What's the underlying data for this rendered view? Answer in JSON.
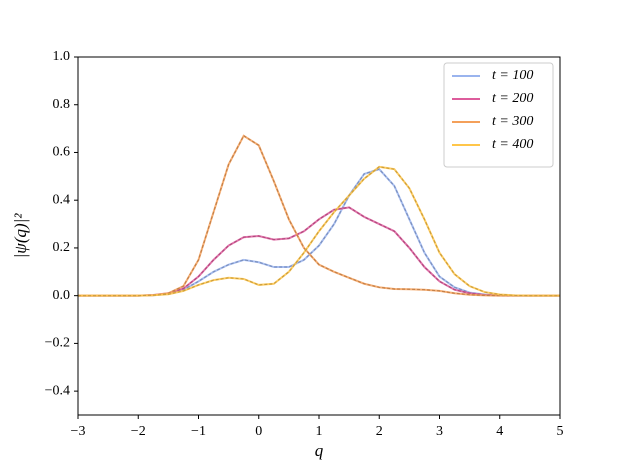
{
  "chart_data": {
    "type": "line",
    "xlabel": "q",
    "ylabel": "|ψ(q)|²",
    "x": [
      -3,
      -2.75,
      -2.5,
      -2.25,
      -2,
      -1.75,
      -1.5,
      -1.25,
      -1,
      -0.75,
      -0.5,
      -0.25,
      0,
      0.25,
      0.5,
      0.75,
      1,
      1.25,
      1.5,
      1.75,
      2,
      2.25,
      2.5,
      2.75,
      3,
      3.25,
      3.5,
      3.75,
      4,
      4.25,
      4.5,
      4.75,
      5
    ],
    "series": [
      {
        "name": "t = 100",
        "color": "#9ab4ee",
        "values": [
          0,
          0,
          0,
          0,
          0,
          0.002,
          0.008,
          0.025,
          0.06,
          0.1,
          0.13,
          0.15,
          0.14,
          0.12,
          0.12,
          0.15,
          0.21,
          0.3,
          0.42,
          0.51,
          0.53,
          0.46,
          0.32,
          0.18,
          0.08,
          0.035,
          0.013,
          0.005,
          0.002,
          0,
          0,
          0,
          0
        ]
      },
      {
        "name": "t = 200",
        "color": "#dd5c9c",
        "values": [
          0,
          0,
          0,
          0,
          0,
          0.003,
          0.01,
          0.03,
          0.08,
          0.15,
          0.21,
          0.245,
          0.25,
          0.235,
          0.24,
          0.27,
          0.32,
          0.36,
          0.37,
          0.33,
          0.3,
          0.27,
          0.2,
          0.12,
          0.06,
          0.025,
          0.01,
          0.003,
          0.001,
          0,
          0,
          0,
          0
        ]
      },
      {
        "name": "t = 300",
        "color": "#f4a05a",
        "values": [
          0,
          0,
          0,
          0,
          0,
          0.002,
          0.01,
          0.04,
          0.15,
          0.35,
          0.55,
          0.67,
          0.63,
          0.48,
          0.32,
          0.2,
          0.13,
          0.1,
          0.075,
          0.05,
          0.035,
          0.028,
          0.027,
          0.025,
          0.02,
          0.01,
          0.004,
          0.001,
          0,
          0,
          0,
          0,
          0
        ]
      },
      {
        "name": "t = 400",
        "color": "#ffc64a",
        "values": [
          0,
          0,
          0,
          0,
          0,
          0.002,
          0.006,
          0.02,
          0.045,
          0.065,
          0.075,
          0.07,
          0.045,
          0.05,
          0.1,
          0.18,
          0.27,
          0.35,
          0.42,
          0.49,
          0.54,
          0.53,
          0.45,
          0.32,
          0.18,
          0.09,
          0.04,
          0.015,
          0.005,
          0.001,
          0,
          0,
          0
        ]
      }
    ],
    "xlim": [
      -3,
      5
    ],
    "xticks": [
      {
        "value": -3,
        "label": "−3"
      },
      {
        "value": -2,
        "label": "−2"
      },
      {
        "value": -1,
        "label": "−1"
      },
      0,
      1,
      2,
      3,
      4,
      5
    ],
    "ylim": [
      -0.5,
      1.0
    ],
    "yticks": [
      {
        "value": -0.4,
        "label": "−0.4"
      },
      {
        "value": -0.2,
        "label": "−0.2"
      },
      {
        "value": 0,
        "label": "0.0"
      },
      0.2,
      0.4,
      0.6,
      0.8,
      {
        "value": 1,
        "label": "1.0"
      }
    ],
    "grid": false,
    "legend": "upper right"
  }
}
